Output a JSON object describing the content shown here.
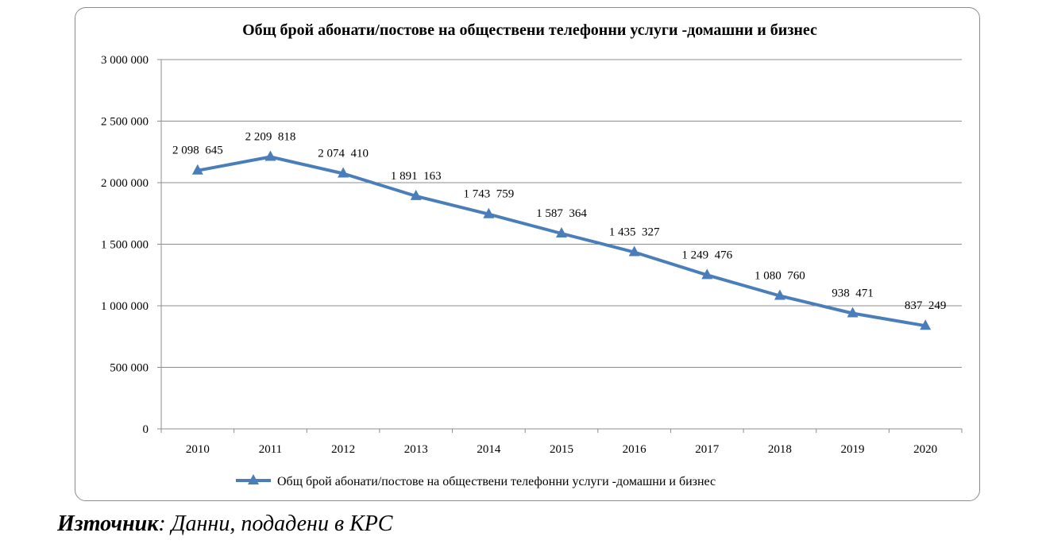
{
  "chart_data": {
    "type": "line",
    "title": "Общ брой абонати/постове на обществени телефонни услуги -домашни и бизнес",
    "xlabel": "",
    "ylabel": "",
    "categories": [
      "2010",
      "2011",
      "2012",
      "2013",
      "2014",
      "2015",
      "2016",
      "2017",
      "2018",
      "2019",
      "2020"
    ],
    "series": [
      {
        "name": "Общ брой абонати/постове на обществени телефонни услуги -домашни и бизнес",
        "values": [
          2098645,
          2209818,
          2074410,
          1891163,
          1743759,
          1587364,
          1435327,
          1249476,
          1080760,
          938471,
          837249
        ],
        "data_labels": [
          "2 098  645",
          "2 209  818",
          "2 074  410",
          "1 891  163",
          "1 743  759",
          "1 587  364",
          "1 435  327",
          "1 249  476",
          "1 080  760",
          "938  471",
          "837  249"
        ],
        "color": "#4a7ebb",
        "marker": "triangle"
      }
    ],
    "ylim": [
      0,
      3000000
    ],
    "yticks": [
      0,
      500000,
      1000000,
      1500000,
      2000000,
      2500000,
      3000000
    ],
    "ytick_labels": [
      "0",
      "500 000",
      "1 000 000",
      "1 500 000",
      "2 000 000",
      "2 500 000",
      "3 000 000"
    ],
    "grid": true,
    "legend_position": "bottom"
  },
  "source": {
    "label": "Източник",
    "text": ": Данни, подадени в КРС"
  }
}
